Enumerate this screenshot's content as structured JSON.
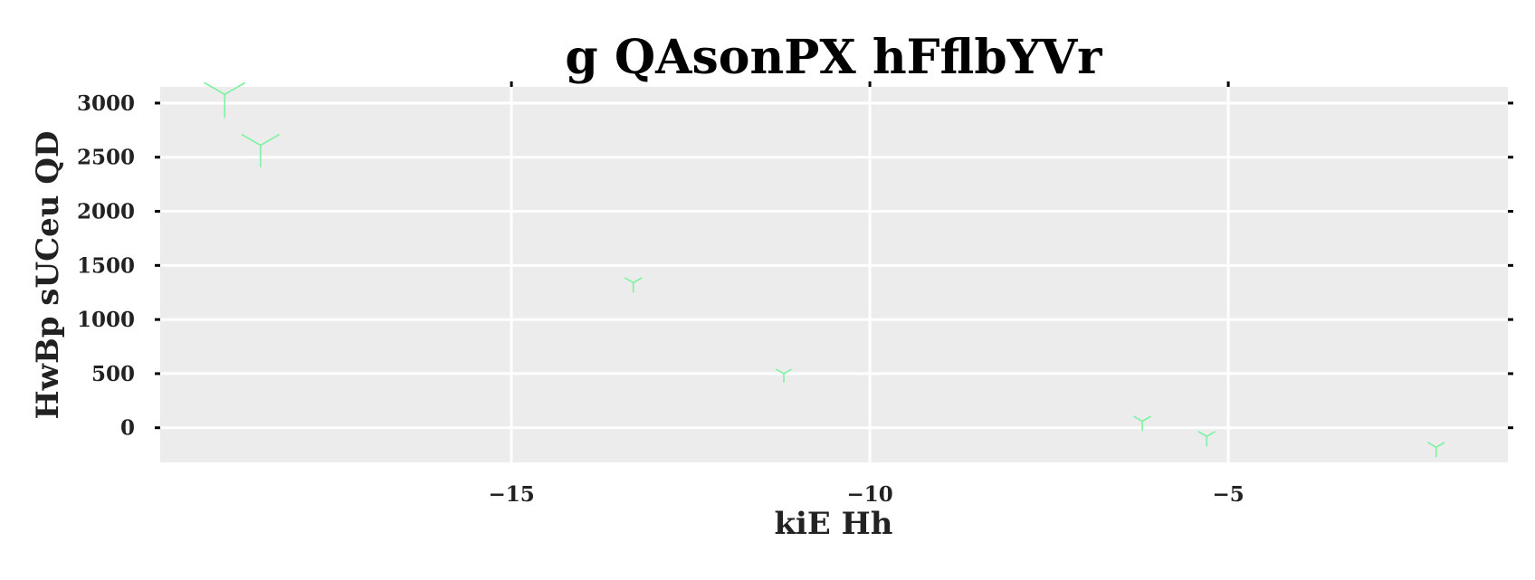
{
  "chart_data": {
    "type": "scatter",
    "title": "g QAsonPX hFflbYVr",
    "xlabel": "kiE Hh",
    "ylabel": "HwBp sUCeu QD",
    "xlim": [
      -19.9,
      -1.1
    ],
    "ylim": [
      -320,
      3150
    ],
    "xticks": [
      -15,
      -10,
      -5
    ],
    "xtick_labels": [
      "−15",
      "−10",
      "−5"
    ],
    "yticks": [
      0,
      500,
      1000,
      1500,
      2000,
      2500,
      3000
    ],
    "ytick_labels": [
      "0",
      "500",
      "1000",
      "1500",
      "2000",
      "2500",
      "3000"
    ],
    "grid": true,
    "marker": "tri_down",
    "marker_color": "#7cf3a0",
    "background_color": "#ececec",
    "series": [
      {
        "x": [
          -19.0,
          -18.5,
          -13.3,
          -11.2,
          -6.2,
          -5.3,
          -2.1
        ],
        "y": [
          3080,
          2610,
          1340,
          500,
          60,
          -80,
          -180
        ],
        "sizes": [
          26,
          24,
          11,
          10,
          11,
          11,
          11
        ]
      }
    ]
  }
}
